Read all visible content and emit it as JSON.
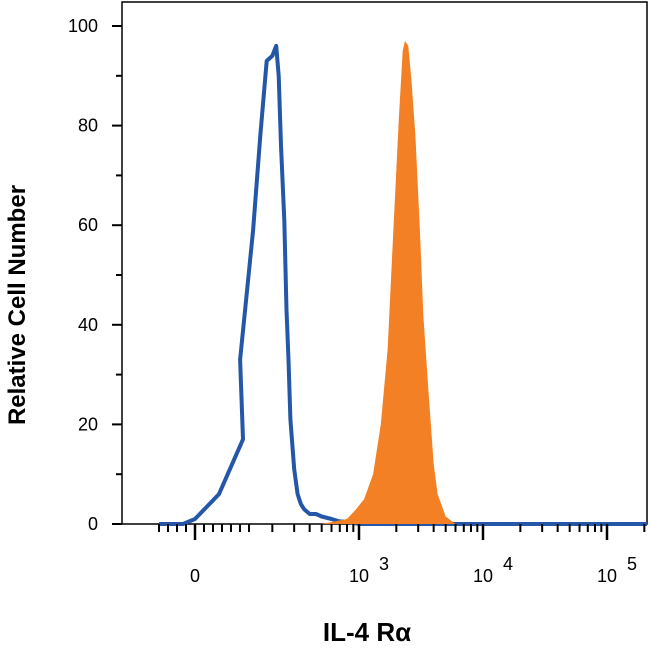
{
  "chart_data": {
    "type": "area",
    "title": "",
    "xlabel": "IL-4 Rα",
    "ylabel": "Relative Cell Number",
    "x_scale": "biexponential",
    "x_ticks": [
      {
        "value": 0,
        "label": "0"
      },
      {
        "value": 1000,
        "label": "10",
        "exp": "3"
      },
      {
        "value": 10000,
        "label": "10",
        "exp": "4"
      },
      {
        "value": 100000,
        "label": "10",
        "exp": "5"
      }
    ],
    "y_ticks": [
      0,
      20,
      40,
      60,
      80,
      100
    ],
    "ylim": [
      0,
      100
    ],
    "grid": false,
    "legend": "none",
    "series": [
      {
        "style": "outline",
        "color": "#2457a8",
        "x": [
          -60,
          -20,
          0,
          40,
          80,
          110,
          140,
          160,
          180,
          200,
          215,
          225,
          235,
          250,
          260,
          270,
          280,
          300,
          320,
          340,
          360,
          380,
          400,
          450,
          500,
          600,
          700,
          800,
          1000,
          2000,
          10000,
          100000,
          250000
        ],
        "y": [
          0,
          0,
          1,
          6,
          17,
          33,
          59,
          78,
          93,
          94,
          96,
          90,
          76,
          61,
          43,
          33,
          21,
          11,
          6,
          4,
          3,
          2.5,
          2,
          2,
          1.5,
          1,
          0.5,
          0.5,
          0,
          0,
          0,
          0,
          0
        ]
      },
      {
        "style": "filled",
        "color": "#f38025",
        "x": [
          -60,
          500,
          800,
          950,
          1100,
          1300,
          1500,
          1700,
          1900,
          2100,
          2250,
          2350,
          2500,
          2650,
          2850,
          3100,
          3300,
          3600,
          4000,
          4300,
          5000,
          6000,
          250000
        ],
        "y": [
          0,
          0,
          1,
          3,
          5,
          10,
          20,
          35,
          60,
          82,
          95,
          97,
          96,
          89,
          78,
          59,
          42,
          28,
          12,
          6,
          1.5,
          0,
          0
        ]
      }
    ]
  }
}
